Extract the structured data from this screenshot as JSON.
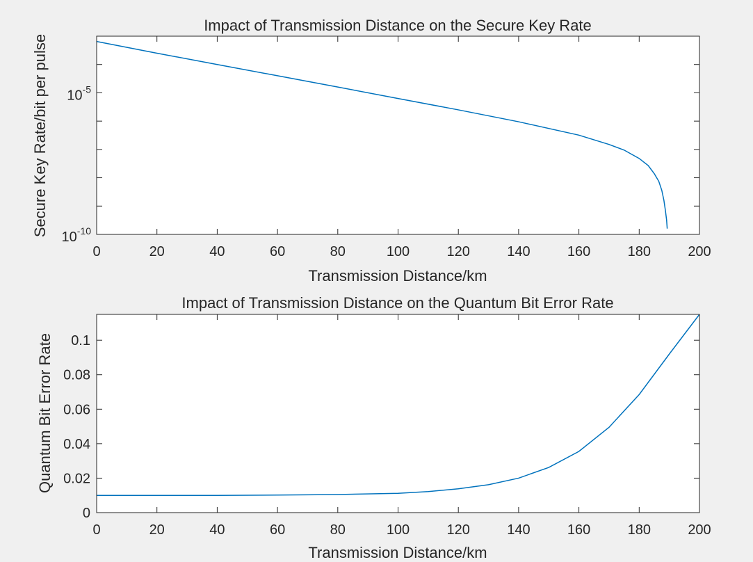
{
  "chart_data": [
    {
      "type": "line",
      "title": "Impact of Transmission Distance on the Secure Key Rate",
      "xlabel": "Transmission Distance/km",
      "ylabel": "Secure Key Rate/bit per pulse",
      "xlim": [
        0,
        200
      ],
      "ylim": [
        1e-10,
        0.001
      ],
      "yscale": "log",
      "x_ticks": [
        "0",
        "20",
        "40",
        "60",
        "80",
        "100",
        "120",
        "140",
        "160",
        "180",
        "200"
      ],
      "y_ticks": [
        {
          "value": 1e-10,
          "base": "10",
          "exp": "-10"
        },
        {
          "value": 1e-05,
          "base": "10",
          "exp": "-5"
        }
      ],
      "grid": false,
      "line_color": "#0072bd",
      "series": [
        {
          "x": [
            0,
            20,
            40,
            60,
            80,
            100,
            120,
            140,
            160,
            170,
            175,
            180,
            183,
            185,
            186.5,
            187.5,
            188.2,
            188.7,
            189.1,
            189.3
          ],
          "y": [
            0.00065,
            0.00025,
            0.0001,
            4e-05,
            1.6e-05,
            6.3e-06,
            2.5e-06,
            9.5e-07,
            3.2e-07,
            1.5e-07,
            9.5e-08,
            4.8e-08,
            2.7e-08,
            1.4e-08,
            7.5e-09,
            3.6e-09,
            1.6e-09,
            7e-10,
            3.2e-10,
            1.6e-10
          ]
        }
      ]
    },
    {
      "type": "line",
      "title": "Impact of Transmission Distance on the Quantum Bit Error Rate",
      "xlabel": "Transmission Distance/km",
      "ylabel": "Quantum Bit Error Rate",
      "xlim": [
        0,
        200
      ],
      "ylim": [
        0,
        0.115
      ],
      "yscale": "linear",
      "x_ticks": [
        "0",
        "20",
        "40",
        "60",
        "80",
        "100",
        "120",
        "140",
        "160",
        "180",
        "200"
      ],
      "y_ticks": [
        {
          "value": 0,
          "label": "0"
        },
        {
          "value": 0.02,
          "label": "0.02"
        },
        {
          "value": 0.04,
          "label": "0.04"
        },
        {
          "value": 0.06,
          "label": "0.06"
        },
        {
          "value": 0.08,
          "label": "0.08"
        },
        {
          "value": 0.1,
          "label": "0.1"
        }
      ],
      "grid": false,
      "line_color": "#0072bd",
      "series": [
        {
          "x": [
            0,
            20,
            40,
            60,
            80,
            100,
            110,
            120,
            130,
            140,
            150,
            160,
            170,
            180,
            190,
            200
          ],
          "y": [
            0.01,
            0.01,
            0.01,
            0.0102,
            0.0105,
            0.0112,
            0.0122,
            0.0138,
            0.0162,
            0.02,
            0.0262,
            0.0355,
            0.0495,
            0.0685,
            0.092,
            0.115
          ]
        }
      ]
    }
  ]
}
